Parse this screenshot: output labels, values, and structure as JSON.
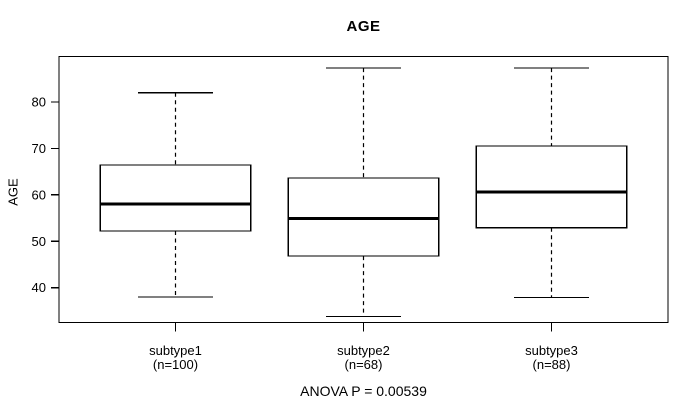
{
  "chart_data": {
    "type": "boxplot",
    "title": "AGE",
    "ylabel": "AGE",
    "note": "ANOVA P = 0.00539",
    "ylim": [
      32.5,
      89.8
    ],
    "yticks": [
      40,
      50,
      60,
      70,
      80
    ],
    "grid": false,
    "legend": null,
    "categories": [
      "subtype1",
      "subtype2",
      "subtype3"
    ],
    "sample_labels": [
      "(n=100)",
      "(n=68)",
      "(n=88)"
    ],
    "series": [
      {
        "name": "subtype1",
        "sample_label": "(n=100)",
        "whisker_low": 38.0,
        "q1": 52.2,
        "median": 58.0,
        "q3": 66.4,
        "whisker_high": 82.0
      },
      {
        "name": "subtype2",
        "sample_label": "(n=68)",
        "whisker_low": 33.8,
        "q1": 46.8,
        "median": 54.9,
        "q3": 63.6,
        "whisker_high": 87.3
      },
      {
        "name": "subtype3",
        "sample_label": "(n=88)",
        "whisker_low": 37.9,
        "q1": 52.9,
        "median": 60.6,
        "q3": 70.5,
        "whisker_high": 87.3
      }
    ],
    "colors": {
      "line": "#000000",
      "box_fill": "#ffffff",
      "background": "#ffffff"
    }
  }
}
